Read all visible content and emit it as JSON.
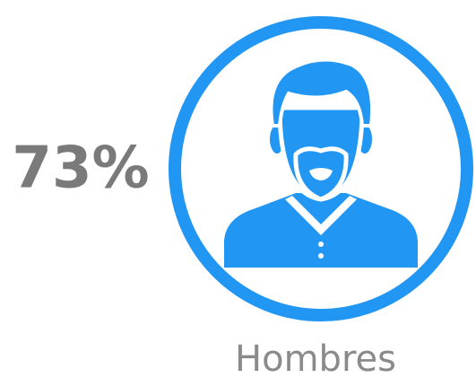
{
  "percentage": "73%",
  "label": "Hombres"
}
